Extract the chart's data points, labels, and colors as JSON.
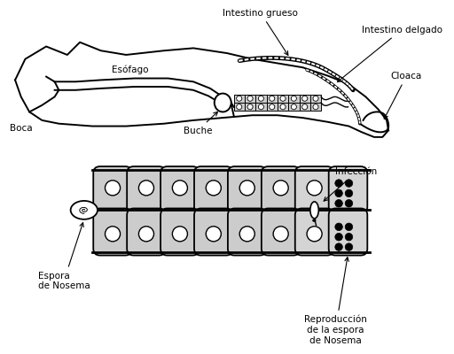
{
  "bg_color": "#ffffff",
  "line_color": "#000000",
  "labels": {
    "boca": "Boca",
    "esofago": "Esófago",
    "buche": "Buche",
    "intestino_grueso": "Intestino grueso",
    "intestino_delgado": "Intestino delgado",
    "cloaca": "Cloaca",
    "infeccion": "Infección",
    "espora": "Espora\nde Nosema",
    "reproduccion": "Reproducción\nde la espora\nde Nosema"
  },
  "cell_fill": "#cccccc",
  "cell_border": "#000000",
  "font_size": 7.5
}
